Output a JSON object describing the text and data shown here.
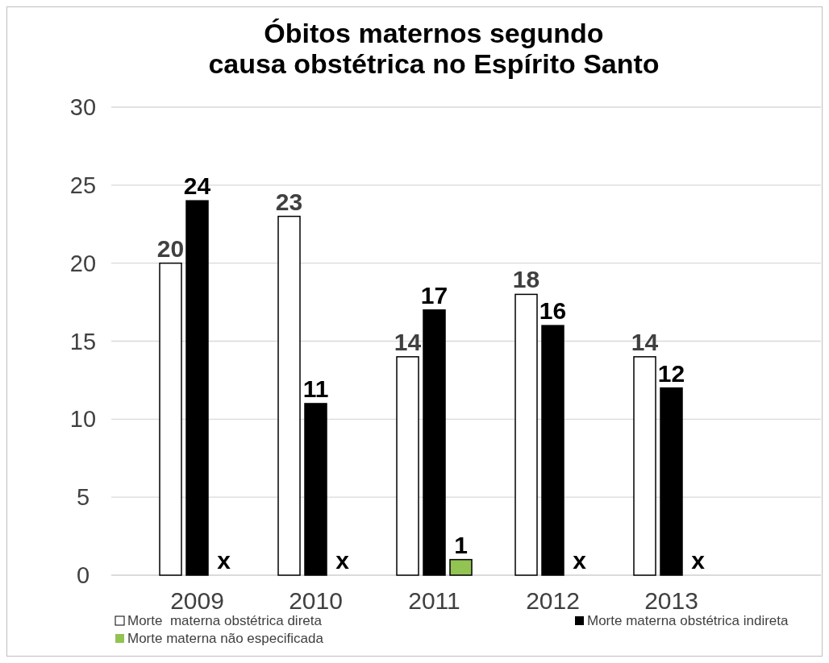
{
  "chart_data": {
    "type": "bar",
    "title": "Óbitos maternos segundo causa obstétrica no Espírito Santo",
    "categories": [
      "2009",
      "2010",
      "2011",
      "2012",
      "2013"
    ],
    "series": [
      {
        "name": "Morte  materna obstétrica direta",
        "color": "#ffffff",
        "values": [
          20,
          23,
          14,
          18,
          14
        ],
        "value_labels": [
          "20",
          "23",
          "14",
          "18",
          "14"
        ]
      },
      {
        "name": "Morte materna obstétrica indireta",
        "color": "#000000",
        "values": [
          24,
          11,
          17,
          16,
          12
        ],
        "value_labels": [
          "24",
          "11",
          "17",
          "16",
          "12"
        ]
      },
      {
        "name": "Morte materna não especificada",
        "color": "#92c353",
        "values": [
          null,
          null,
          1,
          null,
          null
        ],
        "value_labels": [
          "x",
          "x",
          "1",
          "x",
          "x"
        ]
      }
    ],
    "ylim": [
      0,
      30
    ],
    "yticks": [
      0,
      5,
      10,
      15,
      20,
      25,
      30
    ],
    "grid": "y",
    "legend": "bottom"
  }
}
